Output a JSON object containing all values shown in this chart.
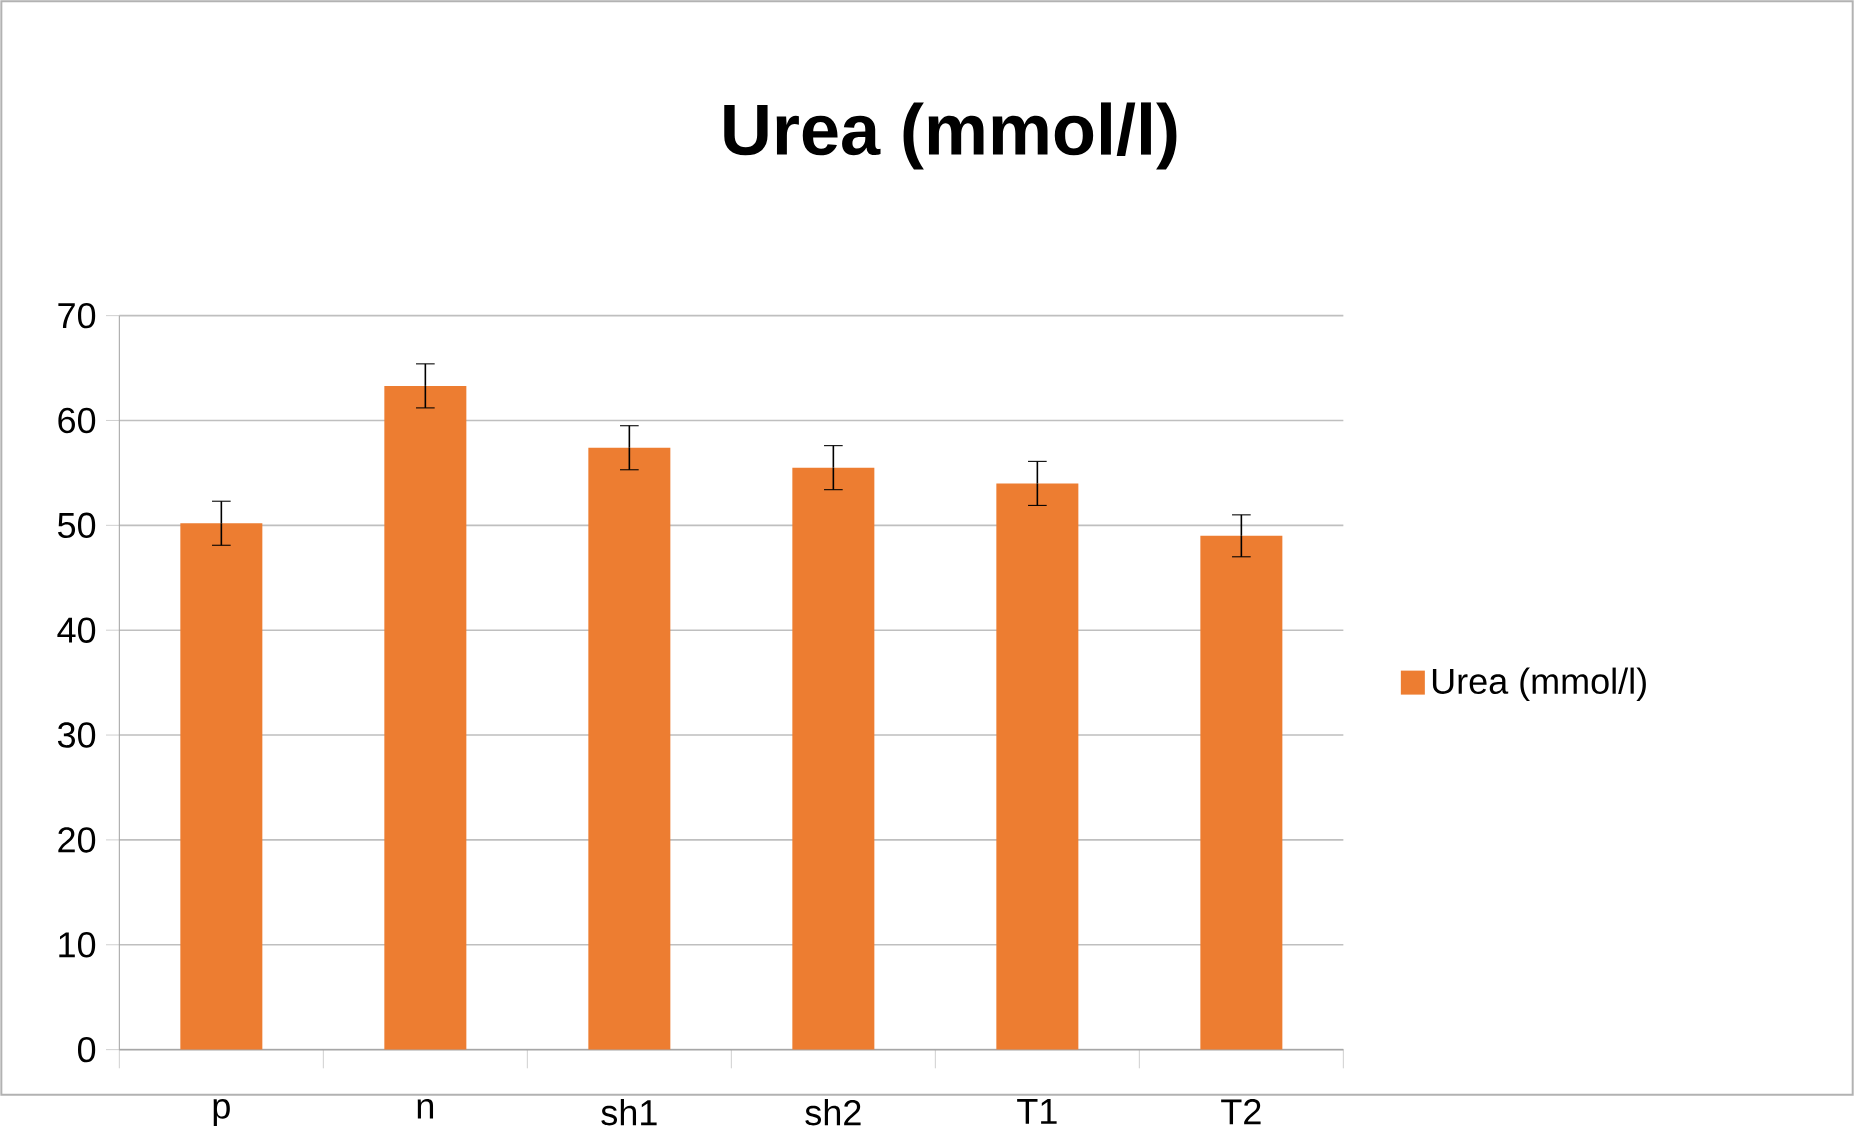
{
  "chart_data": {
    "type": "bar",
    "title": "Urea  (mmol/l)",
    "categories": [
      "p",
      "n",
      "sh1",
      "sh2",
      "T1",
      "T2"
    ],
    "series": [
      {
        "name": "Urea  (mmol/l)",
        "color": "#ed7d31",
        "values": [
          50.2,
          63.3,
          57.4,
          55.5,
          54.0,
          49.0
        ],
        "errors": [
          2.1,
          2.1,
          2.1,
          2.1,
          2.1,
          2.0
        ]
      }
    ],
    "ylim": [
      0,
      70
    ],
    "yticks": [
      0,
      10,
      20,
      30,
      40,
      50,
      60,
      70
    ],
    "grid": "y",
    "legend": "right"
  }
}
